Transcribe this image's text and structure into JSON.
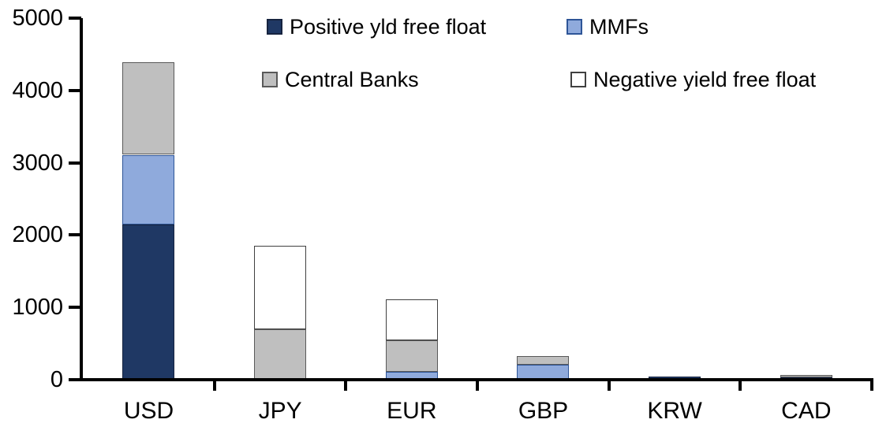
{
  "chart_data": {
    "type": "bar",
    "stacked": true,
    "title": "",
    "xlabel": "",
    "ylabel": "",
    "grid": false,
    "legend_position": "top",
    "ylim": [
      0,
      5000
    ],
    "yticks": [
      0,
      1000,
      2000,
      3000,
      4000,
      5000
    ],
    "categories": [
      "USD",
      "JPY",
      "EUR",
      "GBP",
      "KRW",
      "CAD"
    ],
    "stack_order_bottom_to_top": [
      "Positive yld free float",
      "MMFs",
      "Central Banks",
      "Negative yield free float"
    ],
    "series": [
      {
        "name": "Positive yld free float",
        "color": "#1f3864",
        "border": "#16233f",
        "values": [
          2150,
          0,
          0,
          0,
          45,
          30
        ]
      },
      {
        "name": "MMFs",
        "color": "#8faadc",
        "border": "#2e5597",
        "values": [
          960,
          0,
          110,
          210,
          0,
          0
        ]
      },
      {
        "name": "Central Banks",
        "color": "#bfbfbf",
        "border": "#595959",
        "values": [
          1280,
          700,
          430,
          120,
          0,
          30
        ]
      },
      {
        "name": "Negative yield free float",
        "color": "#ffffff",
        "border": "#404040",
        "values": [
          0,
          1150,
          570,
          0,
          0,
          0
        ]
      }
    ],
    "totals_by_category": [
      4390,
      1850,
      1110,
      330,
      45,
      60
    ]
  },
  "colors": {
    "axis": "#000000",
    "text": "#000000",
    "background": "#ffffff"
  }
}
